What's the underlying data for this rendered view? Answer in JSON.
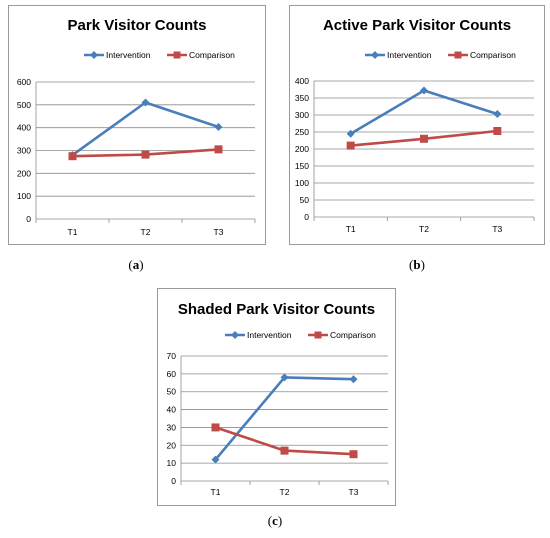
{
  "colors": {
    "intervention": "#4a7ebb",
    "comparison": "#be4b48",
    "grid": "#8c8c8c",
    "border": "#9a9a9a"
  },
  "legend": {
    "intervention": "Intervention",
    "comparison": "Comparison"
  },
  "chart_data": [
    {
      "type": "line",
      "title": "Park Visitor Counts",
      "caption": "a",
      "categories": [
        "T1",
        "T2",
        "T3"
      ],
      "ylim": [
        0,
        600
      ],
      "yticks": [
        0,
        100,
        200,
        300,
        400,
        500,
        600
      ],
      "grid": true,
      "legend_position": "top",
      "series": [
        {
          "name": "Intervention",
          "values": [
            280,
            510,
            403
          ]
        },
        {
          "name": "Comparison",
          "values": [
            275,
            282,
            305
          ]
        }
      ]
    },
    {
      "type": "line",
      "title": "Active Park Visitor Counts",
      "caption": "b",
      "categories": [
        "T1",
        "T2",
        "T3"
      ],
      "ylim": [
        0,
        400
      ],
      "yticks": [
        0,
        50,
        100,
        150,
        200,
        250,
        300,
        350,
        400
      ],
      "grid": true,
      "legend_position": "top",
      "series": [
        {
          "name": "Intervention",
          "values": [
            245,
            372,
            303
          ]
        },
        {
          "name": "Comparison",
          "values": [
            210,
            230,
            253
          ]
        }
      ]
    },
    {
      "type": "line",
      "title": "Shaded Park Visitor Counts",
      "caption": "c",
      "categories": [
        "T1",
        "T2",
        "T3"
      ],
      "ylim": [
        0,
        70
      ],
      "yticks": [
        0,
        10,
        20,
        30,
        40,
        50,
        60,
        70
      ],
      "grid": true,
      "legend_position": "top",
      "series": [
        {
          "name": "Intervention",
          "values": [
            12,
            58,
            57
          ]
        },
        {
          "name": "Comparison",
          "values": [
            30,
            17,
            15
          ]
        }
      ]
    }
  ]
}
